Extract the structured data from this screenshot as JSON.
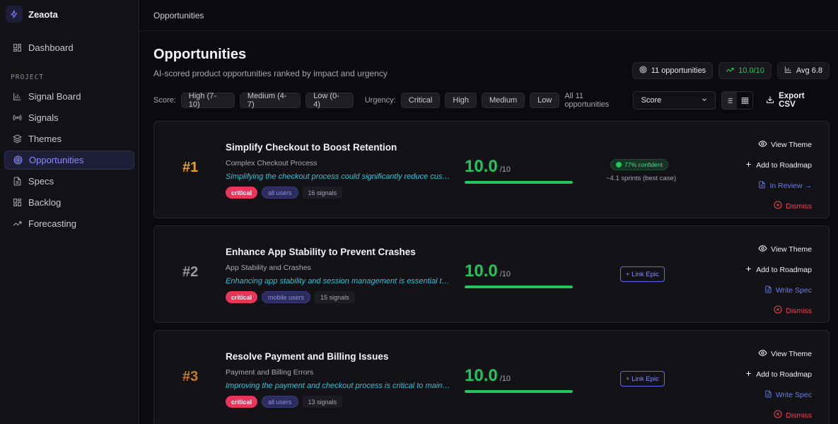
{
  "brand": {
    "name": "Zeaota"
  },
  "sidebar": {
    "top_item": {
      "label": "Dashboard",
      "icon": "grid-icon"
    },
    "section_label": "PROJECT",
    "items": [
      {
        "label": "Signal Board",
        "icon": "bar-chart-icon"
      },
      {
        "label": "Signals",
        "icon": "radio-icon"
      },
      {
        "label": "Themes",
        "icon": "layers-icon"
      },
      {
        "label": "Opportunities",
        "icon": "target-icon",
        "active": true
      },
      {
        "label": "Specs",
        "icon": "document-icon"
      },
      {
        "label": "Backlog",
        "icon": "grid-icon"
      },
      {
        "label": "Forecasting",
        "icon": "trend-icon"
      }
    ]
  },
  "topbar": {
    "breadcrumb": "Opportunities"
  },
  "header": {
    "title": "Opportunities",
    "subtitle": "AI-scored product opportunities ranked by impact and urgency",
    "stats": {
      "count": "11 opportunities",
      "top": "10.0/10",
      "avg": "Avg 6.8"
    }
  },
  "filters": {
    "score_label": "Score:",
    "score_chips": [
      "High (7-10)",
      "Medium (4-7)",
      "Low (0-4)"
    ],
    "urgency_label": "Urgency:",
    "urgency_chips": [
      "Critical",
      "High",
      "Medium",
      "Low"
    ],
    "all_count": "All 11 opportunities",
    "sort_value": "Score",
    "export_label": "Export CSV"
  },
  "cards": [
    {
      "rank": "#1",
      "title": "Simplify Checkout to Boost Retention",
      "theme": "Complex Checkout Process",
      "description": "Simplifying the checkout process could significantly reduce customer churn and increase conversion.",
      "tags": {
        "urgency": "critical",
        "audience": "all users",
        "signals": "16 signals"
      },
      "score": "10.0",
      "score_den": "/10",
      "score_fraction": 1.0,
      "confidence": "77% confident",
      "eta": "~4.1 sprints (best case)",
      "actions": {
        "view": "View Theme",
        "roadmap": "Add to Roadmap",
        "status": "In Review →",
        "dismiss": "Dismiss"
      }
    },
    {
      "rank": "#2",
      "title": "Enhance App Stability to Prevent Crashes",
      "theme": "App Stability and Crashes",
      "description": "Enhancing app stability and session management is essential to prevent crashes and data loss.",
      "tags": {
        "urgency": "critical",
        "audience": "mobile users",
        "signals": "15 signals"
      },
      "score": "10.0",
      "score_den": "/10",
      "score_fraction": 1.0,
      "link_epic": "+ Link Epic",
      "actions": {
        "view": "View Theme",
        "roadmap": "Add to Roadmap",
        "status": "Write Spec",
        "dismiss": "Dismiss"
      }
    },
    {
      "rank": "#3",
      "title": "Resolve Payment and Billing Issues",
      "theme": "Payment and Billing Errors",
      "description": "Improving the payment and checkout process is critical to maintaining customer trust and revenue.",
      "tags": {
        "urgency": "critical",
        "audience": "all users",
        "signals": "13 signals"
      },
      "score": "10.0",
      "score_den": "/10",
      "score_fraction": 1.0,
      "link_epic": "+ Link Epic",
      "actions": {
        "view": "View Theme",
        "roadmap": "Add to Roadmap",
        "status": "Write Spec",
        "dismiss": "Dismiss"
      }
    }
  ]
}
